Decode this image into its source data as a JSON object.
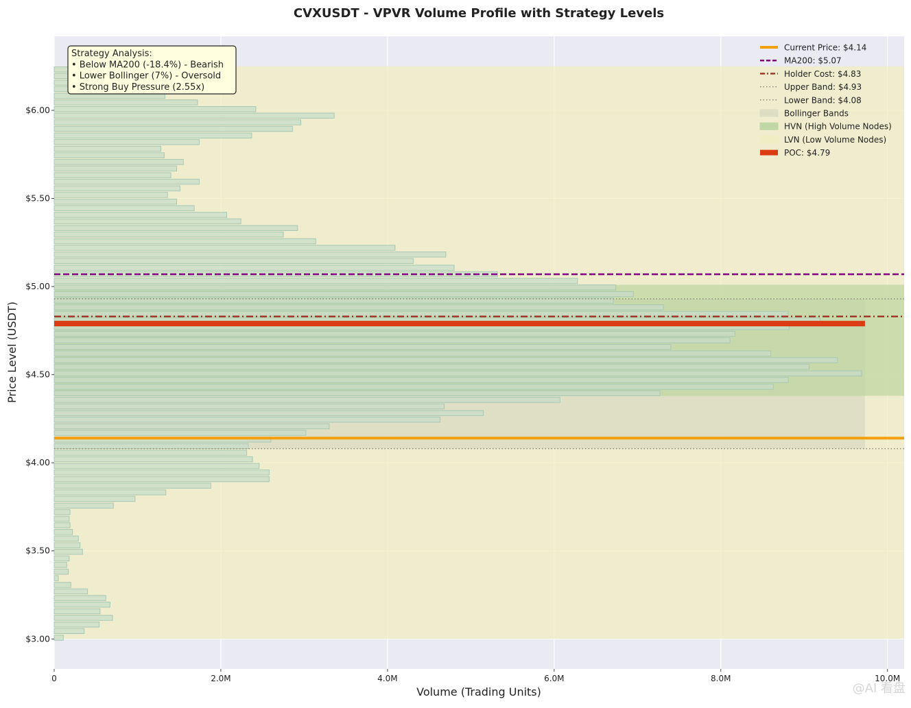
{
  "chart_data": {
    "type": "bar",
    "orientation": "horizontal",
    "title": "CVXUSDT - VPVR Volume Profile with Strategy Levels",
    "xlabel": "Volume (Trading Units)",
    "ylabel": "Price Level (USDT)",
    "xlim": [
      0,
      10200000
    ],
    "ylim": [
      2.83,
      6.42
    ],
    "x_ticks": [
      0,
      2000000,
      4000000,
      6000000,
      8000000,
      10000000
    ],
    "x_tick_labels": [
      "0",
      "2.0M",
      "4.0M",
      "6.0M",
      "8.0M",
      "10.0M"
    ],
    "y_ticks": [
      3.0,
      3.5,
      4.0,
      4.5,
      5.0,
      5.5,
      6.0
    ],
    "y_tick_labels": [
      "$3.00",
      "$3.50",
      "$4.00",
      "$4.50",
      "$5.00",
      "$5.50",
      "$6.00"
    ],
    "grid": true,
    "legend_position": "top-right",
    "bar_height": 0.033,
    "bar_color": "#c8dcc8",
    "bar_edge_color": "#a8c8b4",
    "series": [
      {
        "prices": [
          3.005,
          3.043,
          3.08,
          3.118,
          3.155,
          3.193,
          3.23,
          3.268,
          3.305,
          3.343,
          3.38,
          3.418,
          3.455,
          3.493,
          3.53,
          3.568,
          3.605,
          3.643,
          3.68,
          3.718,
          3.755,
          3.793,
          3.83,
          3.868,
          3.905,
          3.943,
          3.98,
          4.018,
          4.055,
          4.093,
          4.13,
          4.168,
          4.205,
          4.243,
          4.28,
          4.318,
          4.355,
          4.393,
          4.43,
          4.468,
          4.505,
          4.543,
          4.58,
          4.618,
          4.655,
          4.693,
          4.73,
          4.768,
          4.805,
          4.843,
          4.88,
          4.918,
          4.955,
          4.993,
          5.03,
          5.068,
          5.105,
          5.143,
          5.18,
          5.218,
          5.255,
          5.293,
          5.33,
          5.368,
          5.405,
          5.443,
          5.48,
          5.518,
          5.555,
          5.593,
          5.63,
          5.668,
          5.705,
          5.743,
          5.78,
          5.818,
          5.855,
          5.893,
          5.93,
          5.968,
          6.005,
          6.043,
          6.08,
          6.118,
          6.155,
          6.193,
          6.23
        ],
        "values": [
          110000,
          360000,
          540000,
          700000,
          550000,
          670000,
          620000,
          400000,
          200000,
          50000,
          170000,
          150000,
          180000,
          340000,
          310000,
          290000,
          220000,
          190000,
          180000,
          190000,
          710000,
          970000,
          1340000,
          1880000,
          2580000,
          2580000,
          2460000,
          2380000,
          2310000,
          2330000,
          2600000,
          3020000,
          3300000,
          4630000,
          5150000,
          4680000,
          6070000,
          7270000,
          8630000,
          8810000,
          9690000,
          9060000,
          9400000,
          8600000,
          7400000,
          8110000,
          8170000,
          8820000,
          9190000,
          8810000,
          7310000,
          6710000,
          6950000,
          6740000,
          6280000,
          5320000,
          4800000,
          4310000,
          4700000,
          4090000,
          3140000,
          2750000,
          2920000,
          2240000,
          2070000,
          1680000,
          1470000,
          1360000,
          1510000,
          1740000,
          1400000,
          1470000,
          1550000,
          1320000,
          1280000,
          1740000,
          2370000,
          2860000,
          2960000,
          3360000,
          2420000,
          1720000,
          1330000,
          1020000,
          690000,
          620000,
          440000
        ]
      }
    ],
    "levels": {
      "current_price": 4.14,
      "ma200": 5.07,
      "holder_cost": 4.83,
      "upper_band": 4.93,
      "lower_band": 4.08,
      "poc": 4.79,
      "poc_volume": 9730000
    },
    "zones": {
      "lvn_range": [
        3.0,
        6.25
      ],
      "hvn_range": [
        4.38,
        5.01
      ],
      "bollinger_range": [
        4.08,
        4.93
      ],
      "bollinger_volume": 9730000
    },
    "colors": {
      "background": "#eaeaf2",
      "current_price": "#f5a00f",
      "ma200": "#800080",
      "holder_cost": "#a0392a",
      "band": "#8a8a7a",
      "lvn": "#f0edc0",
      "hvn": "#bcd4a0",
      "bollinger": "#dcdcc4",
      "poc": "#dc3c14"
    },
    "legend": [
      {
        "label": "Current Price: $4.14",
        "style": "solid",
        "color": "#f5a00f"
      },
      {
        "label": "MA200: $5.07",
        "style": "dashed",
        "color": "#800080"
      },
      {
        "label": "Holder Cost: $4.83",
        "style": "dashdot",
        "color": "#a0392a"
      },
      {
        "label": "Upper Band: $4.93",
        "style": "dotted",
        "color": "#8a8a7a"
      },
      {
        "label": "Lower Band: $4.08",
        "style": "dotted",
        "color": "#8a8a7a"
      },
      {
        "label": "Bollinger Bands",
        "style": "patch",
        "color": "#dcdcc4"
      },
      {
        "label": "HVN (High Volume Nodes)",
        "style": "patch",
        "color": "#bcd4a0"
      },
      {
        "label": "LVN (Low Volume Nodes)",
        "style": "patch",
        "color": "#f0edc0"
      },
      {
        "label": "POC: $4.79",
        "style": "thick",
        "color": "#dc3c14"
      }
    ],
    "annotation": {
      "lines": [
        "Strategy Analysis:",
        "• Below MA200 (-18.4%) - Bearish",
        "• Lower Bollinger (7%) - Oversold",
        "• Strong Buy Pressure (2.55x)"
      ]
    }
  },
  "watermark": "@AI 看盘"
}
